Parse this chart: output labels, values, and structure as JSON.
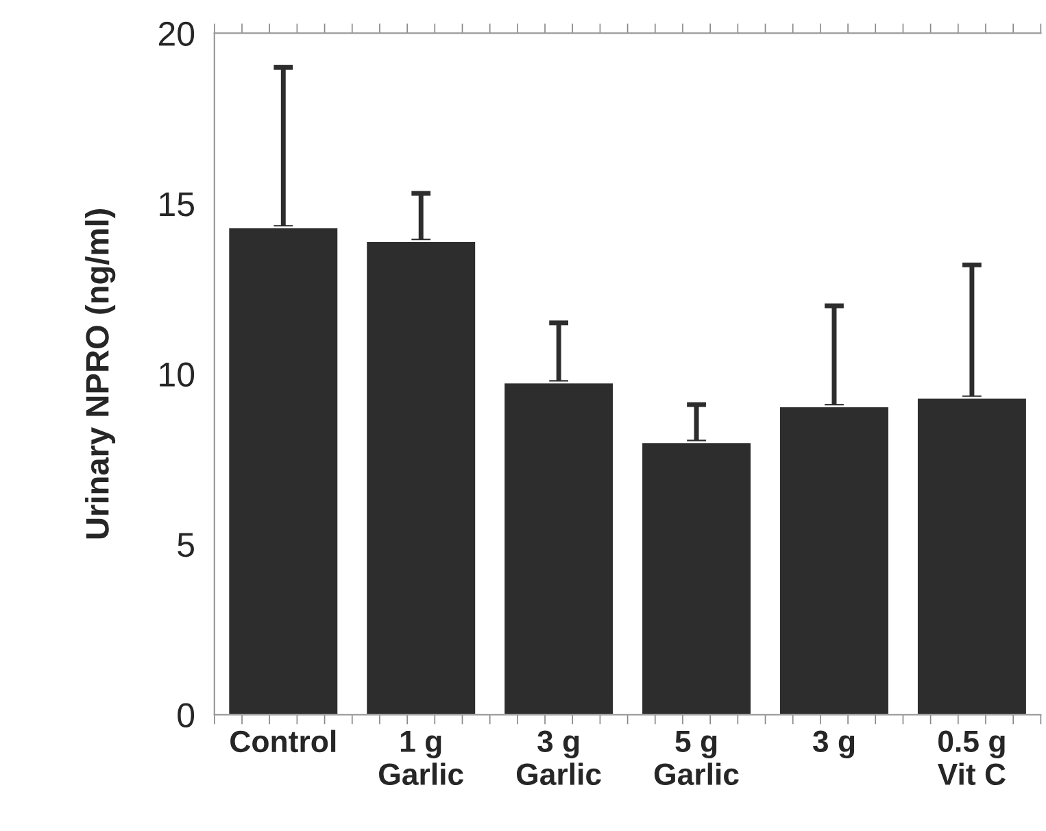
{
  "chart_data": {
    "type": "bar",
    "ylabel": "Urinary NPRO (ng/ml)",
    "categories": [
      "Control",
      "1 g\nGarlic",
      "3 g\nGarlic",
      "5 g\nGarlic",
      "3 g",
      "0.5 g\nVit C"
    ],
    "values": [
      14.3,
      13.9,
      9.75,
      8.0,
      9.05,
      9.3
    ],
    "errors": [
      [
        14.3,
        19.0
      ],
      [
        13.9,
        15.3
      ],
      [
        9.75,
        11.5
      ],
      [
        8.0,
        9.1
      ],
      [
        9.05,
        12.0
      ],
      [
        9.3,
        13.2
      ]
    ],
    "color": "#2d2d2d",
    "ylim": [
      0,
      20
    ],
    "yticks": [
      0,
      5,
      10,
      15,
      20
    ],
    "grid": false,
    "legend": false
  }
}
